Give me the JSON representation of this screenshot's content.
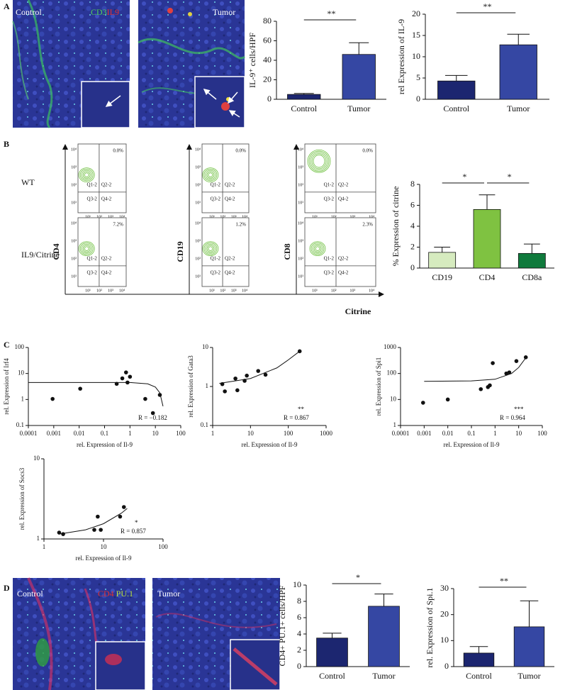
{
  "panel_labels": [
    "A",
    "B",
    "C",
    "D"
  ],
  "images": [
    {
      "labels": [
        "Control",
        "CD3",
        "IL9"
      ]
    },
    {
      "labels": [
        "Tumor"
      ]
    },
    {
      "labels": [
        "Control",
        "CD4",
        "PU.1"
      ]
    },
    {
      "labels": [
        "Tumor"
      ]
    }
  ],
  "flow": {
    "row_labels": [
      "WT",
      "IL9/Citrine"
    ],
    "y_labels": [
      "CD4",
      "CD19",
      "CD8"
    ],
    "x_label": "Citrine",
    "quadrants": [
      "Q1-2",
      "Q2-2",
      "Q3-2",
      "Q4-2"
    ],
    "tick_labels": [
      "10¹",
      "10²",
      "10³",
      "10⁴"
    ],
    "percentages": [
      [
        "0.0%",
        "0.0%",
        "0.0%"
      ],
      [
        "7.2%",
        "1.2%",
        "2.3%"
      ]
    ]
  },
  "chart_data": [
    {
      "type": "bar",
      "ylabel": "IL-9⁺ cells/HPF",
      "categories": [
        "Control",
        "Tumor"
      ],
      "values": [
        5,
        46
      ],
      "errors": [
        1,
        12
      ],
      "colors": [
        "#1c2670",
        "#3547a3"
      ],
      "ylim": [
        0,
        80
      ],
      "yticks": [
        0,
        20,
        40,
        60,
        80
      ],
      "annotations": [
        "**"
      ]
    },
    {
      "type": "bar",
      "ylabel": "rel Expression of IL-9",
      "categories": [
        "Control",
        "Tumor"
      ],
      "values": [
        4.3,
        12.8
      ],
      "errors": [
        1.3,
        2.5
      ],
      "colors": [
        "#1c2670",
        "#3547a3"
      ],
      "ylim": [
        0,
        20
      ],
      "yticks": [
        0,
        5,
        10,
        15,
        20
      ],
      "annotations": [
        "**"
      ]
    },
    {
      "type": "bar",
      "ylabel": "% Expression of citrine",
      "categories": [
        "CD19",
        "CD4",
        "CD8a"
      ],
      "values": [
        1.5,
        5.6,
        1.4
      ],
      "errors": [
        0.5,
        1.4,
        0.9
      ],
      "colors": [
        "#d6ebbf",
        "#7fc241",
        "#0f7a3c"
      ],
      "ylim": [
        0,
        8
      ],
      "yticks": [
        0,
        2,
        4,
        6,
        8
      ],
      "annotations": [
        "*",
        "*"
      ]
    },
    {
      "type": "scatter",
      "ylabel": "rel. Expression of Irf4",
      "xlabel": "rel. Expression of Il-9",
      "log_x": true,
      "log_y": true,
      "x": [
        0.0009,
        0.011,
        0.3,
        0.5,
        0.7,
        0.8,
        1.0,
        4,
        8,
        15
      ],
      "values": [
        1.05,
        2.6,
        4,
        6.5,
        11,
        4.5,
        7.5,
        1.05,
        0.3,
        1.5
      ],
      "fit": {
        "x": [
          0.0001,
          0.01,
          1,
          5,
          10,
          15,
          20
        ],
        "values": [
          4.5,
          4.5,
          4.5,
          4,
          3,
          1.8,
          0.55
        ]
      },
      "xlim": [
        0.0001,
        100
      ],
      "xticks": [
        0.0001,
        0.001,
        0.01,
        0.1,
        1,
        10,
        100
      ],
      "ylim": [
        0.1,
        100
      ],
      "yticks": [
        0.1,
        1,
        10,
        100
      ],
      "annotations": [
        "R = −0.182"
      ]
    },
    {
      "type": "scatter",
      "ylabel": "rel. Expression of Gata3",
      "xlabel": "rel. Expression of Il-9",
      "log_x": true,
      "log_y": true,
      "x": [
        1.8,
        2.1,
        4,
        4.5,
        7,
        8,
        16,
        25,
        200
      ],
      "values": [
        1.15,
        0.75,
        1.6,
        0.8,
        1.4,
        1.9,
        2.5,
        2.0,
        8
      ],
      "fit": {
        "x": [
          1.5,
          10,
          50,
          100,
          200
        ],
        "values": [
          1.2,
          1.6,
          3,
          4.8,
          8
        ]
      },
      "xlim": [
        1,
        1000
      ],
      "xticks": [
        1,
        10,
        100,
        1000
      ],
      "ylim": [
        0.1,
        10
      ],
      "yticks": [
        0.1,
        1,
        10
      ],
      "annotations": [
        "**",
        "R = 0.867"
      ]
    },
    {
      "type": "scatter",
      "ylabel": "rel. Expression of Spi1",
      "xlabel": "rel. Expression of Il-9",
      "log_x": true,
      "log_y": true,
      "x": [
        0.0009,
        0.01,
        0.25,
        0.5,
        0.6,
        0.8,
        3,
        4,
        8,
        20
      ],
      "values": [
        7.5,
        10,
        25,
        30,
        35,
        250,
        100,
        110,
        300,
        420
      ],
      "fit": {
        "x": [
          0.001,
          0.1,
          1,
          5,
          10,
          20
        ],
        "values": [
          50,
          52,
          60,
          100,
          170,
          400
        ]
      },
      "xlim": [
        0.0001,
        100
      ],
      "xticks": [
        0.0001,
        0.001,
        0.01,
        0.1,
        1,
        10,
        100
      ],
      "ylim": [
        1,
        1000
      ],
      "yticks": [
        1,
        10,
        100,
        1000
      ],
      "annotations": [
        "***",
        "R = 0.964"
      ]
    },
    {
      "type": "scatter",
      "ylabel": "rel. Expression of Socs3",
      "xlabel": "rel. Expression of Il-9",
      "log_x": true,
      "log_y": true,
      "x": [
        1.8,
        2.1,
        7,
        8,
        9,
        19,
        22
      ],
      "values": [
        1.2,
        1.15,
        1.3,
        1.9,
        1.3,
        1.9,
        2.5
      ],
      "fit": {
        "x": [
          1.8,
          5,
          10,
          20,
          25
        ],
        "values": [
          1.15,
          1.3,
          1.55,
          2.1,
          2.4
        ]
      },
      "xlim": [
        1,
        100
      ],
      "xticks": [
        1,
        10,
        100
      ],
      "ylim": [
        1,
        10
      ],
      "yticks": [
        1,
        10
      ],
      "annotations": [
        "*",
        "R = 0.857"
      ]
    },
    {
      "type": "bar",
      "ylabel": "CD4+ PU.1+ cells/HPF",
      "categories": [
        "Control",
        "Tumor"
      ],
      "values": [
        3.5,
        7.4
      ],
      "errors": [
        0.6,
        1.5
      ],
      "colors": [
        "#1c2670",
        "#3547a3"
      ],
      "ylim": [
        0,
        10
      ],
      "yticks": [
        0,
        2,
        4,
        6,
        8,
        10
      ],
      "annotations": [
        "*"
      ]
    },
    {
      "type": "bar",
      "ylabel": "rel. Expression of Spi.1",
      "categories": [
        "Control",
        "Tumor"
      ],
      "values": [
        5.2,
        15.3
      ],
      "errors": [
        2.5,
        10
      ],
      "colors": [
        "#1c2670",
        "#3547a3"
      ],
      "ylim": [
        0,
        30
      ],
      "yticks": [
        0,
        10,
        20,
        30
      ],
      "annotations": [
        "**"
      ]
    }
  ]
}
